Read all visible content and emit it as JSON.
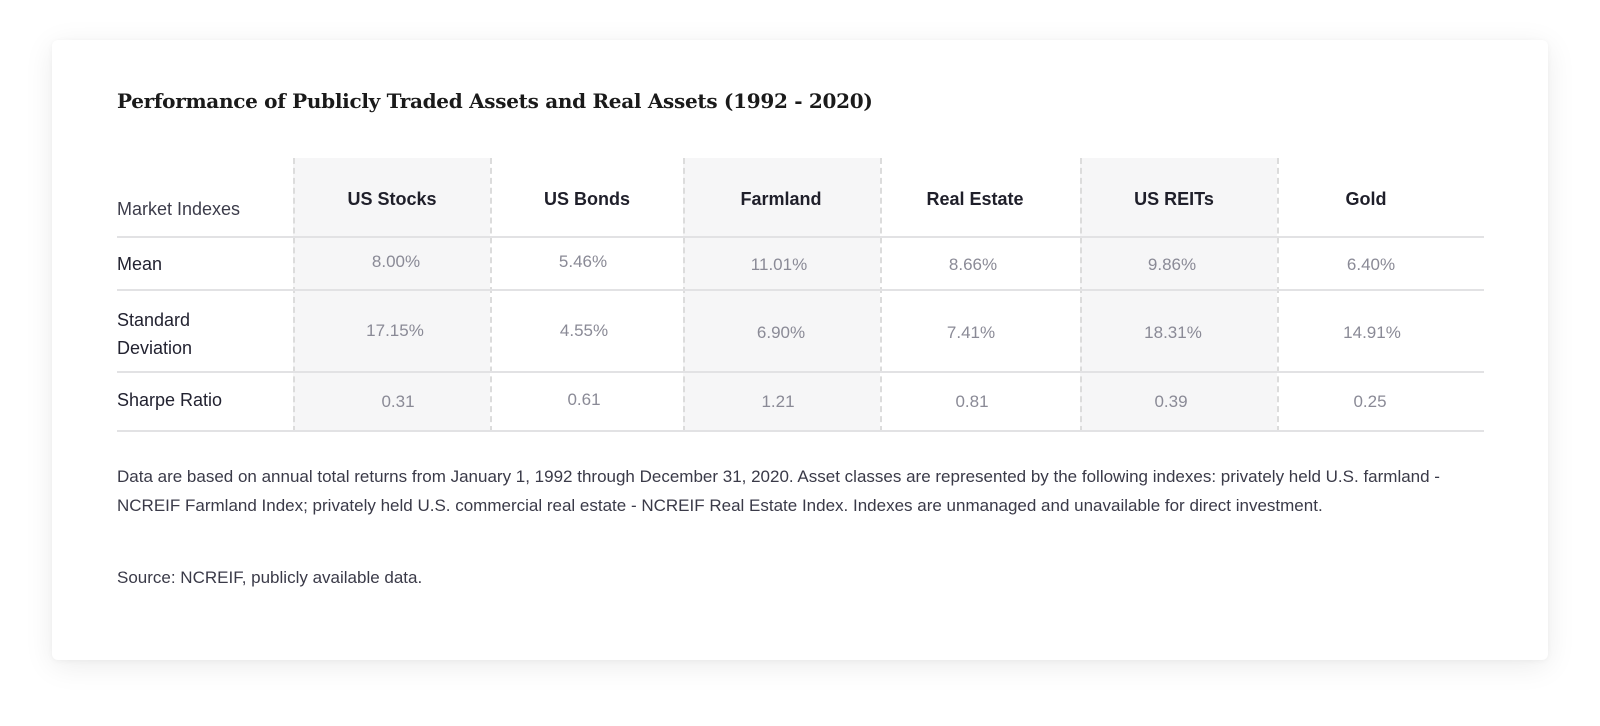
{
  "title": "Performance of Publicly Traded Assets and Real Assets (1992 - 2020)",
  "table": {
    "corner_label": "Market Indexes",
    "columns": [
      "US Stocks",
      "US Bonds",
      "Farmland",
      "Real Estate",
      "US REITs",
      "Gold"
    ],
    "rows": [
      {
        "label": "Mean",
        "values": [
          "8.00%",
          "5.46%",
          "11.01%",
          "8.66%",
          "9.86%",
          "6.40%"
        ]
      },
      {
        "label": "Standard Deviation",
        "values": [
          "17.15%",
          "4.55%",
          "6.90%",
          "7.41%",
          "18.31%",
          "14.91%"
        ]
      },
      {
        "label": "Sharpe Ratio",
        "values": [
          "0.31",
          "0.61",
          "1.21",
          "0.81",
          "0.39",
          "0.25"
        ]
      }
    ]
  },
  "footnote": "Data are based on annual total returns from January 1, 1992 through December 31, 2020. Asset classes are represented by the following indexes: privately held U.S. farmland - NCREIF Farmland Index; privately held U.S. commercial real estate - NCREIF Real Estate Index. Indexes are unmanaged and unavailable for direct investment.",
  "source": "Source: NCREIF, publicly available data.",
  "colors": {
    "shaded_column": "#f6f6f7",
    "divider": "#e2e2e4",
    "value_text": "#8a8a96"
  }
}
